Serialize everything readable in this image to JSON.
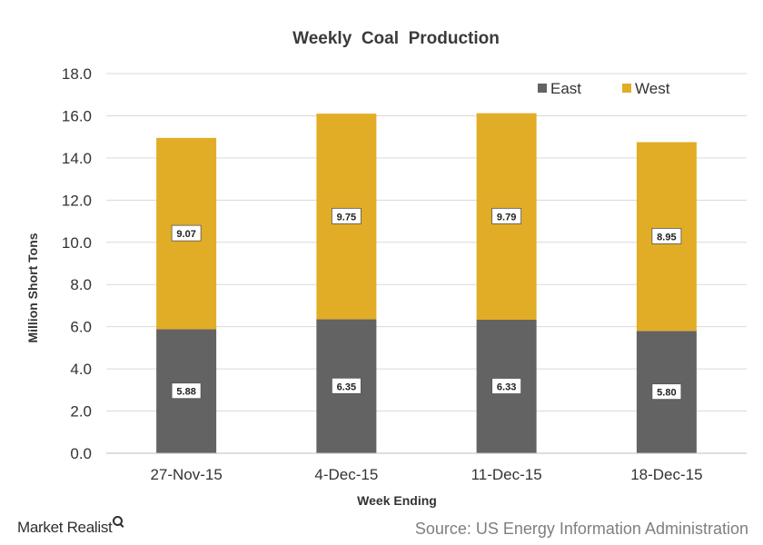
{
  "chart_data": {
    "type": "bar",
    "stacked": true,
    "title": "Weekly  Coal  Production",
    "xlabel": "Week Ending",
    "ylabel": "Million Short Tons",
    "categories": [
      "27-Nov-15",
      "4-Dec-15",
      "11-Dec-15",
      "18-Dec-15"
    ],
    "series": [
      {
        "name": "East",
        "color": "#636363",
        "values": [
          5.88,
          6.35,
          6.33,
          5.8
        ],
        "labels": [
          "5.88",
          "6.35",
          "6.33",
          "5.80"
        ]
      },
      {
        "name": "West",
        "color": "#e2ad26",
        "values": [
          9.07,
          9.75,
          9.79,
          8.95
        ],
        "labels": [
          "9.07",
          "9.75",
          "9.79",
          "8.95"
        ]
      }
    ],
    "ylim": [
      0,
      18
    ],
    "yticks": [
      "0.0",
      "2.0",
      "4.0",
      "6.0",
      "8.0",
      "10.0",
      "12.0",
      "14.0",
      "16.0",
      "18.0"
    ],
    "grid": true,
    "legend_position": "top-right"
  },
  "footer": {
    "brand": "Market Realist",
    "source": "Source: US Energy Information Administration"
  }
}
